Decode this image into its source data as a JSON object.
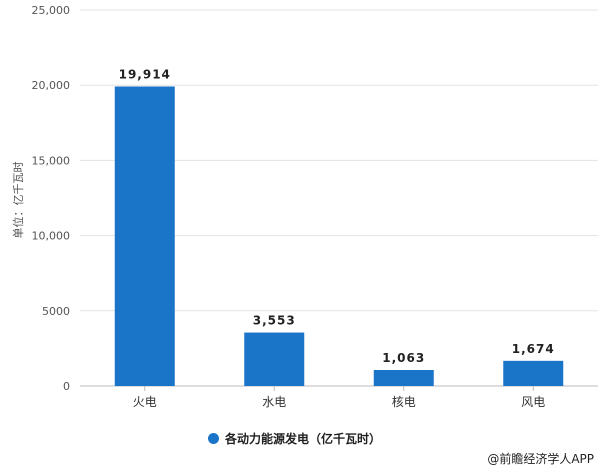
{
  "chart_data": {
    "type": "bar",
    "categories": [
      "火电",
      "水电",
      "核电",
      "风电"
    ],
    "values": [
      19914,
      3553,
      1063,
      1674
    ],
    "data_labels": [
      "19,914",
      "3,553",
      "1,063",
      "1,674"
    ],
    "ylabel": "单位：亿千瓦时",
    "ylim": [
      0,
      25000
    ],
    "yticks": [
      0,
      5000,
      10000,
      15000,
      20000,
      25000
    ],
    "ytick_labels": [
      "0",
      "5000",
      "10,000",
      "15,000",
      "20,000",
      "25,000"
    ],
    "grid": true,
    "legend": {
      "label": "各动力能源发电（亿千瓦时）",
      "placement": "bottom"
    },
    "color": "#1a75c9"
  },
  "credit": "@前瞻经济学人APP"
}
